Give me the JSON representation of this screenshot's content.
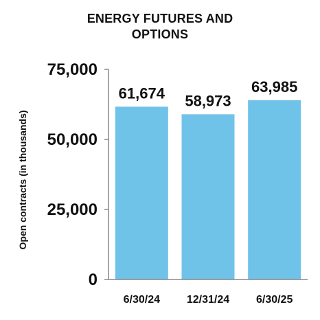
{
  "chart_data": {
    "type": "bar",
    "title": "ENERGY FUTURES AND OPTIONS",
    "ylabel": "Open contracts (in thousands)",
    "xlabel": "",
    "categories": [
      "6/30/24",
      "12/31/24",
      "6/30/25"
    ],
    "values": [
      61674,
      58973,
      63985
    ],
    "value_labels": [
      "61,674",
      "58,973",
      "63,985"
    ],
    "ylim": [
      0,
      75000
    ],
    "yticks": [
      0,
      25000,
      50000,
      75000
    ],
    "ytick_labels": [
      "0",
      "25,000",
      "50,000",
      "75,000"
    ],
    "grid": false,
    "legend": "none",
    "bar_color": "#70C3E8",
    "axis_color": "#888888"
  }
}
